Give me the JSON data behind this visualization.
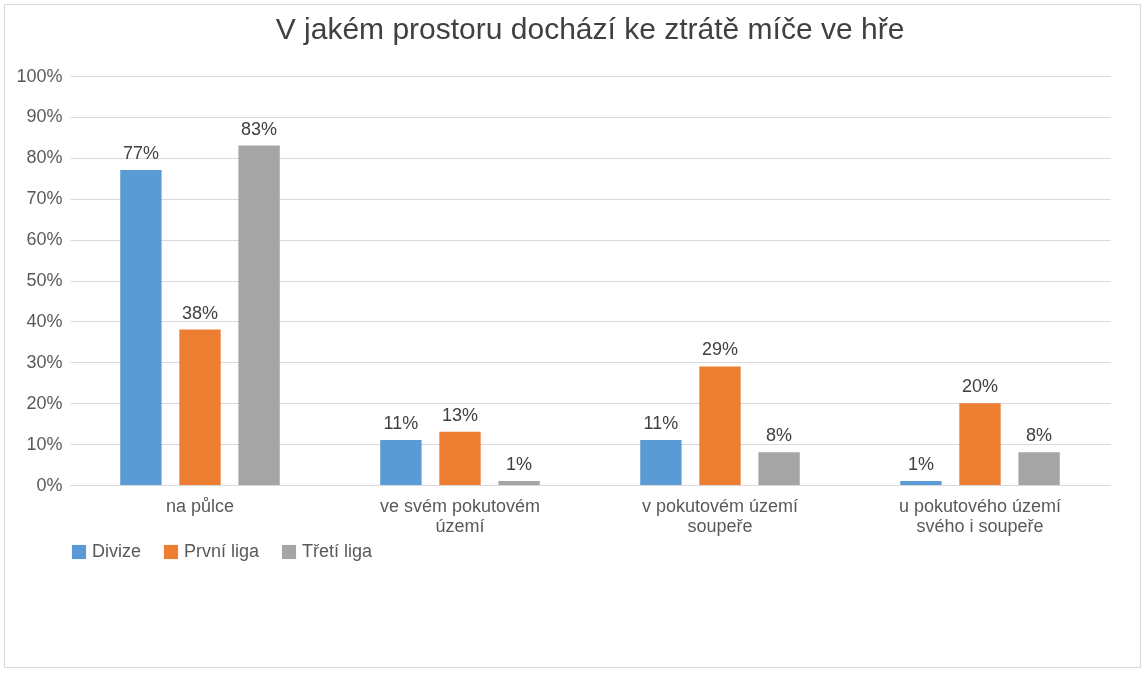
{
  "chart_data": {
    "type": "bar",
    "title": "V jakém prostoru dochází ke ztrátě míče ve hře",
    "categories": [
      "na půlce",
      "ve svém pokutovém území",
      "v pokutovém území soupeře",
      "u pokutového území svého i soupeře"
    ],
    "series": [
      {
        "name": "Divize",
        "color": "#5b9bd5",
        "values": [
          77,
          11,
          11,
          1
        ],
        "value_labels": [
          "77%",
          "11%",
          "11%",
          "1%"
        ]
      },
      {
        "name": "První liga",
        "color": "#ed7d31",
        "values": [
          38,
          13,
          29,
          20
        ],
        "value_labels": [
          "38%",
          "13%",
          "29%",
          "20%"
        ]
      },
      {
        "name": "Třetí liga",
        "color": "#a5a5a5",
        "values": [
          83,
          1,
          8,
          8
        ],
        "value_labels": [
          "83%",
          "1%",
          "8%",
          "8%"
        ]
      }
    ],
    "ylim": [
      0,
      100
    ],
    "yticks": [
      {
        "value": 0,
        "label": "0%"
      },
      {
        "value": 10,
        "label": "10%"
      },
      {
        "value": 20,
        "label": "20%"
      },
      {
        "value": 30,
        "label": "30%"
      },
      {
        "value": 40,
        "label": "40%"
      },
      {
        "value": 50,
        "label": "50%"
      },
      {
        "value": 60,
        "label": "60%"
      },
      {
        "value": 70,
        "label": "70%"
      },
      {
        "value": 80,
        "label": "80%"
      },
      {
        "value": 90,
        "label": "90%"
      },
      {
        "value": 100,
        "label": "100%"
      }
    ],
    "grid": "y",
    "legend": "bottom"
  }
}
